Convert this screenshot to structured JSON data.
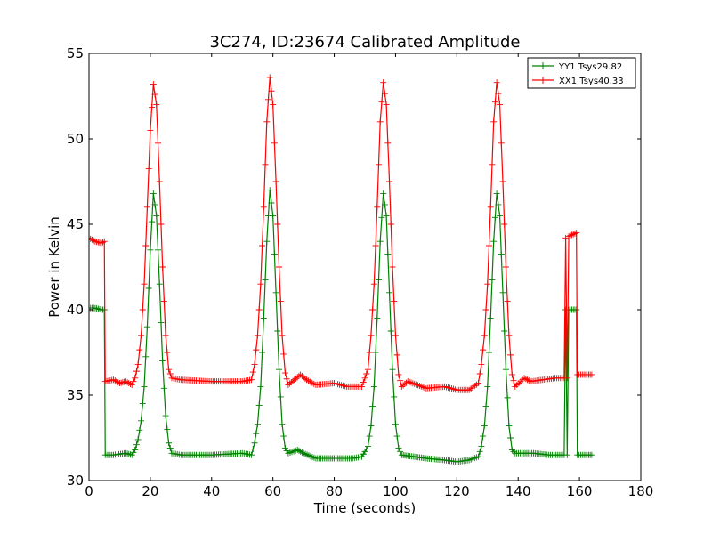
{
  "chart_data": {
    "type": "line",
    "title": "3C274, ID:23674 Calibrated Amplitude",
    "xlabel": "Time (seconds)",
    "ylabel": "Power in Kelvin",
    "xlim": [
      0,
      180
    ],
    "ylim": [
      30,
      55
    ],
    "xticks": [
      "0",
      "20",
      "40",
      "60",
      "80",
      "100",
      "120",
      "140",
      "160",
      "180"
    ],
    "yticks": [
      "30",
      "35",
      "40",
      "45",
      "50",
      "55"
    ],
    "grid": false,
    "legend_position": "top-right",
    "series": [
      {
        "name": "YY1 Tsys29.82",
        "color": "#008000",
        "marker": "+",
        "points": [
          [
            0,
            40.1
          ],
          [
            2,
            40.1
          ],
          [
            4,
            40.0
          ],
          [
            5,
            40.0
          ],
          [
            5.3,
            31.5
          ],
          [
            8,
            31.5
          ],
          [
            12,
            31.6
          ],
          [
            14,
            31.5
          ],
          [
            15,
            31.8
          ],
          [
            16,
            32.4
          ],
          [
            17,
            33.5
          ],
          [
            18,
            35.5
          ],
          [
            19,
            39.0
          ],
          [
            20,
            43.5
          ],
          [
            21,
            46.8
          ],
          [
            22,
            45.5
          ],
          [
            23,
            41.5
          ],
          [
            24,
            37.0
          ],
          [
            25,
            33.8
          ],
          [
            26,
            32.2
          ],
          [
            27,
            31.6
          ],
          [
            30,
            31.5
          ],
          [
            40,
            31.5
          ],
          [
            50,
            31.6
          ],
          [
            53,
            31.5
          ],
          [
            54,
            32.2
          ],
          [
            55,
            33.3
          ],
          [
            56,
            35.5
          ],
          [
            57,
            39.5
          ],
          [
            58,
            44.0
          ],
          [
            59,
            47.0
          ],
          [
            60,
            45.5
          ],
          [
            61,
            41.0
          ],
          [
            62,
            36.5
          ],
          [
            63,
            33.3
          ],
          [
            64,
            31.9
          ],
          [
            65,
            31.6
          ],
          [
            68,
            31.8
          ],
          [
            70,
            31.6
          ],
          [
            74,
            31.3
          ],
          [
            80,
            31.3
          ],
          [
            86,
            31.3
          ],
          [
            89,
            31.4
          ],
          [
            91,
            32.0
          ],
          [
            92,
            33.2
          ],
          [
            93,
            35.5
          ],
          [
            94,
            39.5
          ],
          [
            95,
            44.0
          ],
          [
            96,
            46.8
          ],
          [
            97,
            45.5
          ],
          [
            98,
            41.0
          ],
          [
            99,
            36.5
          ],
          [
            100,
            33.3
          ],
          [
            101,
            31.9
          ],
          [
            102,
            31.5
          ],
          [
            110,
            31.3
          ],
          [
            116,
            31.2
          ],
          [
            120,
            31.1
          ],
          [
            124,
            31.2
          ],
          [
            127,
            31.4
          ],
          [
            128,
            32.0
          ],
          [
            129,
            33.2
          ],
          [
            130,
            35.5
          ],
          [
            131,
            39.5
          ],
          [
            132,
            44.0
          ],
          [
            133,
            46.8
          ],
          [
            134,
            45.5
          ],
          [
            135,
            41.0
          ],
          [
            136,
            36.5
          ],
          [
            137,
            33.2
          ],
          [
            138,
            31.8
          ],
          [
            139,
            31.6
          ],
          [
            145,
            31.6
          ],
          [
            150,
            31.5
          ],
          [
            155,
            31.5
          ],
          [
            155.5,
            40.0
          ],
          [
            156,
            31.5
          ],
          [
            156.5,
            40.0
          ],
          [
            159,
            40.0
          ],
          [
            159.3,
            31.5
          ],
          [
            162,
            31.5
          ],
          [
            164,
            31.5
          ]
        ]
      },
      {
        "name": "XX1 Tsys40.33",
        "color": "#ff0000",
        "marker": "+",
        "points": [
          [
            0,
            44.2
          ],
          [
            2,
            44.0
          ],
          [
            4,
            43.9
          ],
          [
            5,
            44.0
          ],
          [
            5.3,
            35.8
          ],
          [
            8,
            35.9
          ],
          [
            10,
            35.7
          ],
          [
            12,
            35.8
          ],
          [
            14,
            35.6
          ],
          [
            15,
            36.0
          ],
          [
            16,
            36.8
          ],
          [
            17,
            38.5
          ],
          [
            18,
            41.5
          ],
          [
            19,
            46.0
          ],
          [
            20,
            50.5
          ],
          [
            21,
            53.2
          ],
          [
            22,
            52.0
          ],
          [
            23,
            47.5
          ],
          [
            24,
            42.5
          ],
          [
            25,
            38.5
          ],
          [
            26,
            36.5
          ],
          [
            27,
            36.0
          ],
          [
            30,
            35.9
          ],
          [
            40,
            35.8
          ],
          [
            50,
            35.8
          ],
          [
            53,
            35.9
          ],
          [
            54,
            36.8
          ],
          [
            55,
            38.5
          ],
          [
            56,
            41.5
          ],
          [
            57,
            46.0
          ],
          [
            58,
            51.0
          ],
          [
            59,
            53.6
          ],
          [
            60,
            52.0
          ],
          [
            61,
            47.5
          ],
          [
            62,
            42.5
          ],
          [
            63,
            38.5
          ],
          [
            64,
            36.3
          ],
          [
            65,
            35.6
          ],
          [
            67,
            35.9
          ],
          [
            69,
            36.2
          ],
          [
            71,
            35.9
          ],
          [
            74,
            35.6
          ],
          [
            80,
            35.7
          ],
          [
            84,
            35.5
          ],
          [
            89,
            35.5
          ],
          [
            91,
            36.5
          ],
          [
            92,
            38.5
          ],
          [
            93,
            41.5
          ],
          [
            94,
            46.0
          ],
          [
            95,
            51.0
          ],
          [
            96,
            53.3
          ],
          [
            97,
            52.0
          ],
          [
            98,
            47.5
          ],
          [
            99,
            42.5
          ],
          [
            100,
            38.5
          ],
          [
            101,
            36.2
          ],
          [
            102,
            35.5
          ],
          [
            104,
            35.8
          ],
          [
            110,
            35.4
          ],
          [
            116,
            35.5
          ],
          [
            120,
            35.3
          ],
          [
            124,
            35.3
          ],
          [
            127,
            35.7
          ],
          [
            128,
            36.8
          ],
          [
            129,
            38.5
          ],
          [
            130,
            41.5
          ],
          [
            131,
            46.0
          ],
          [
            132,
            51.0
          ],
          [
            133,
            53.3
          ],
          [
            134,
            52.0
          ],
          [
            135,
            47.5
          ],
          [
            136,
            42.5
          ],
          [
            137,
            38.5
          ],
          [
            138,
            36.2
          ],
          [
            139,
            35.5
          ],
          [
            142,
            36.0
          ],
          [
            144,
            35.8
          ],
          [
            148,
            35.9
          ],
          [
            152,
            36.0
          ],
          [
            155,
            36.0
          ],
          [
            155.5,
            44.2
          ],
          [
            156,
            36.0
          ],
          [
            156.5,
            44.3
          ],
          [
            159,
            44.5
          ],
          [
            159.3,
            36.2
          ],
          [
            162,
            36.2
          ],
          [
            164,
            36.2
          ]
        ]
      }
    ]
  }
}
